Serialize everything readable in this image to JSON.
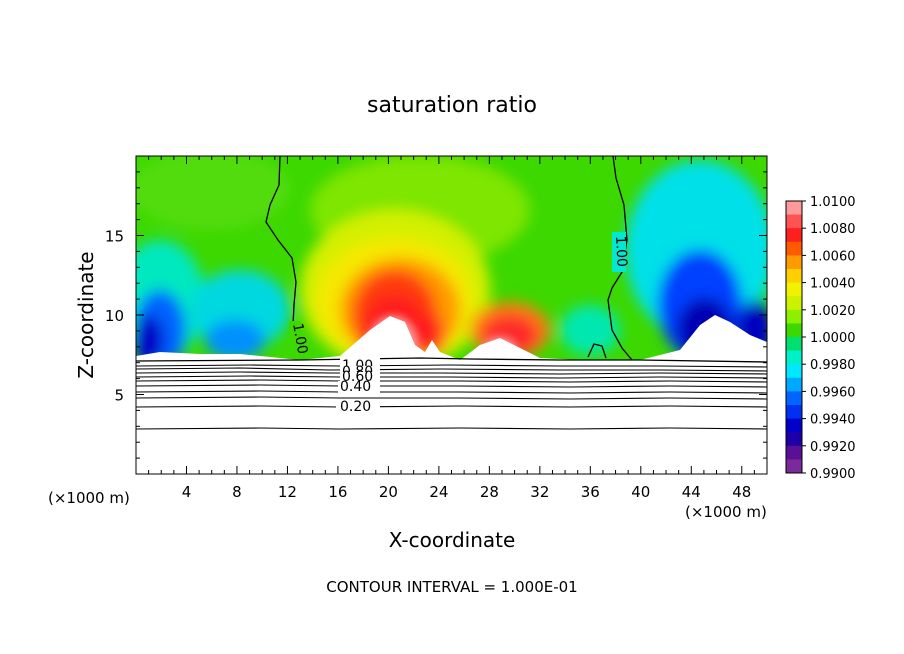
{
  "chart_data": {
    "type": "heatmap",
    "title": "saturation ratio",
    "xlabel": "X-coordinate",
    "ylabel": "Z-coordinate",
    "x_unit_left": "(×1000 m)",
    "x_unit_right": "(×1000 m)",
    "xlim": [
      0,
      50
    ],
    "ylim": [
      0,
      20
    ],
    "x_ticks": [
      4,
      8,
      12,
      16,
      20,
      24,
      28,
      32,
      36,
      40,
      44,
      48
    ],
    "x_tick_labels": [
      "4",
      "8",
      "12",
      "16",
      "20",
      "24",
      "28",
      "32",
      "36",
      "40",
      "44",
      "48"
    ],
    "y_ticks": [
      5,
      10,
      15
    ],
    "y_tick_labels": [
      "5",
      "10",
      "15"
    ],
    "colorbar": {
      "min": 0.99,
      "max": 1.01,
      "labels": [
        "1.0100",
        "1.0080",
        "1.0060",
        "1.0040",
        "1.0020",
        "1.0000",
        "0.9980",
        "0.9960",
        "0.9940",
        "0.9920",
        "0.9900"
      ],
      "colors": [
        "#ff9a9a",
        "#ff5252",
        "#ff1f1f",
        "#ff5a00",
        "#ff9a00",
        "#ffd000",
        "#f2f200",
        "#cdf200",
        "#8ef000",
        "#3cd800",
        "#00e070",
        "#00f0c8",
        "#00e8ff",
        "#00a8ff",
        "#0064ff",
        "#0030f0",
        "#0000c8",
        "#1e00a8",
        "#5a1096",
        "#7a2a9a"
      ]
    },
    "contours": [
      {
        "label": "1.00"
      },
      {
        "label": "1.00"
      },
      {
        "label": "1.00"
      },
      {
        "label": "0.80"
      },
      {
        "label": "0.60"
      },
      {
        "label": "0.40"
      },
      {
        "label": "0.20"
      }
    ],
    "annotation": "CONTOUR INTERVAL = 1.000E-01"
  }
}
